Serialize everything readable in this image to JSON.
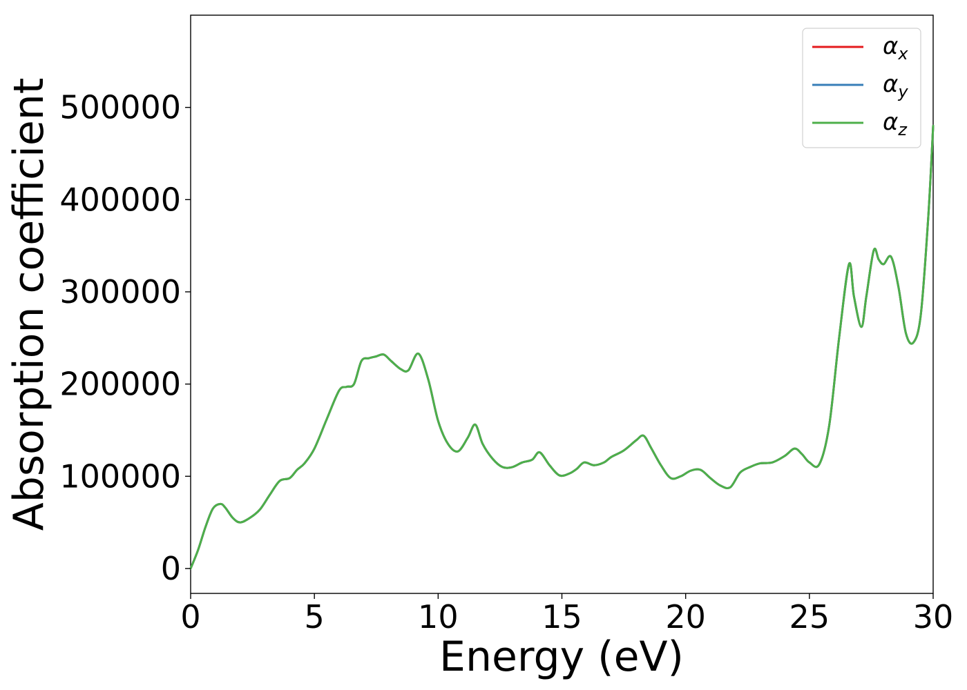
{
  "chart_data": {
    "type": "line",
    "title": "",
    "xlabel": "Energy (eV)",
    "ylabel": "Absorption coefficient",
    "xlim": [
      0,
      30
    ],
    "ylim": [
      -27000,
      600000
    ],
    "xticks": [
      0,
      5,
      10,
      15,
      20,
      25,
      30
    ],
    "yticks": [
      0,
      100000,
      200000,
      300000,
      400000,
      500000
    ],
    "grid": false,
    "legend": "top-right",
    "series": [
      {
        "name": "α",
        "sub": "x",
        "color": "#e41a1c",
        "x": [
          0,
          0.3,
          0.6,
          0.9,
          1.2,
          1.4,
          1.7,
          2.0,
          2.4,
          2.8,
          3.2,
          3.6,
          4.0,
          4.3,
          4.6,
          5.0,
          5.5,
          6.0,
          6.3,
          6.6,
          6.9,
          7.2,
          7.5,
          7.8,
          8.1,
          8.5,
          8.8,
          9.2,
          9.6,
          10.0,
          10.4,
          10.8,
          11.2,
          11.5,
          11.8,
          12.2,
          12.6,
          13.0,
          13.4,
          13.8,
          14.1,
          14.5,
          14.9,
          15.3,
          15.6,
          15.9,
          16.3,
          16.7,
          17.0,
          17.5,
          18.0,
          18.3,
          18.6,
          19.0,
          19.4,
          19.8,
          20.2,
          20.6,
          21.0,
          21.4,
          21.8,
          22.2,
          22.6,
          23.0,
          23.5,
          24.0,
          24.4,
          24.7,
          25.0,
          25.4,
          25.8,
          26.2,
          26.6,
          26.8,
          27.1,
          27.3,
          27.6,
          27.8,
          28.0,
          28.3,
          28.6,
          28.9,
          29.2,
          29.5,
          29.8,
          30.0
        ],
        "y": [
          0,
          20000,
          45000,
          65000,
          70000,
          66000,
          55000,
          50000,
          55000,
          64000,
          80000,
          95000,
          98000,
          107000,
          114000,
          130000,
          162000,
          193000,
          197000,
          200000,
          225000,
          228000,
          230000,
          232000,
          225000,
          216000,
          215000,
          233000,
          205000,
          160000,
          135000,
          127000,
          142000,
          156000,
          135000,
          119000,
          110000,
          110000,
          115000,
          118000,
          126000,
          112000,
          101000,
          103000,
          108000,
          115000,
          112000,
          115000,
          121000,
          128000,
          139000,
          144000,
          131000,
          112000,
          98000,
          100000,
          106000,
          107000,
          98000,
          90000,
          88000,
          104000,
          110000,
          114000,
          115000,
          122000,
          130000,
          124000,
          115000,
          113000,
          155000,
          250000,
          330000,
          295000,
          262000,
          295000,
          345000,
          335000,
          330000,
          338000,
          305000,
          255000,
          245000,
          275000,
          380000,
          480000
        ]
      },
      {
        "name": "α",
        "sub": "y",
        "color": "#377eb8",
        "x": [
          0,
          0.3,
          0.6,
          0.9,
          1.2,
          1.4,
          1.7,
          2.0,
          2.4,
          2.8,
          3.2,
          3.6,
          4.0,
          4.3,
          4.6,
          5.0,
          5.5,
          6.0,
          6.3,
          6.6,
          6.9,
          7.2,
          7.5,
          7.8,
          8.1,
          8.5,
          8.8,
          9.2,
          9.6,
          10.0,
          10.4,
          10.8,
          11.2,
          11.5,
          11.8,
          12.2,
          12.6,
          13.0,
          13.4,
          13.8,
          14.1,
          14.5,
          14.9,
          15.3,
          15.6,
          15.9,
          16.3,
          16.7,
          17.0,
          17.5,
          18.0,
          18.3,
          18.6,
          19.0,
          19.4,
          19.8,
          20.2,
          20.6,
          21.0,
          21.4,
          21.8,
          22.2,
          22.6,
          23.0,
          23.5,
          24.0,
          24.4,
          24.7,
          25.0,
          25.4,
          25.8,
          26.2,
          26.6,
          26.8,
          27.1,
          27.3,
          27.6,
          27.8,
          28.0,
          28.3,
          28.6,
          28.9,
          29.2,
          29.5,
          29.8,
          30.0
        ],
        "y": [
          0,
          20000,
          45000,
          65000,
          70000,
          66000,
          55000,
          50000,
          55000,
          64000,
          80000,
          95000,
          98000,
          107000,
          114000,
          130000,
          162000,
          193000,
          197000,
          200000,
          225000,
          228000,
          230000,
          232000,
          225000,
          216000,
          215000,
          233000,
          205000,
          160000,
          135000,
          127000,
          142000,
          156000,
          135000,
          119000,
          110000,
          110000,
          115000,
          118000,
          126000,
          112000,
          101000,
          103000,
          108000,
          115000,
          112000,
          115000,
          121000,
          128000,
          139000,
          144000,
          131000,
          112000,
          98000,
          100000,
          106000,
          107000,
          98000,
          90000,
          88000,
          104000,
          110000,
          114000,
          115000,
          122000,
          130000,
          124000,
          115000,
          113000,
          155000,
          250000,
          330000,
          295000,
          262000,
          295000,
          345000,
          335000,
          330000,
          338000,
          305000,
          255000,
          245000,
          275000,
          380000,
          480000
        ]
      },
      {
        "name": "α",
        "sub": "z",
        "color": "#4daf4a",
        "x": [
          0,
          0.3,
          0.6,
          0.9,
          1.2,
          1.4,
          1.7,
          2.0,
          2.4,
          2.8,
          3.2,
          3.6,
          4.0,
          4.3,
          4.6,
          5.0,
          5.5,
          6.0,
          6.3,
          6.6,
          6.9,
          7.2,
          7.5,
          7.8,
          8.1,
          8.5,
          8.8,
          9.2,
          9.6,
          10.0,
          10.4,
          10.8,
          11.2,
          11.5,
          11.8,
          12.2,
          12.6,
          13.0,
          13.4,
          13.8,
          14.1,
          14.5,
          14.9,
          15.3,
          15.6,
          15.9,
          16.3,
          16.7,
          17.0,
          17.5,
          18.0,
          18.3,
          18.6,
          19.0,
          19.4,
          19.8,
          20.2,
          20.6,
          21.0,
          21.4,
          21.8,
          22.2,
          22.6,
          23.0,
          23.5,
          24.0,
          24.4,
          24.7,
          25.0,
          25.4,
          25.8,
          26.2,
          26.6,
          26.8,
          27.1,
          27.3,
          27.6,
          27.8,
          28.0,
          28.3,
          28.6,
          28.9,
          29.2,
          29.5,
          29.8,
          30.0
        ],
        "y": [
          0,
          20000,
          45000,
          65000,
          70000,
          66000,
          55000,
          50000,
          55000,
          64000,
          80000,
          95000,
          98000,
          107000,
          114000,
          130000,
          162000,
          193000,
          197000,
          200000,
          225000,
          228000,
          230000,
          232000,
          225000,
          216000,
          215000,
          233000,
          205000,
          160000,
          135000,
          127000,
          142000,
          156000,
          135000,
          119000,
          110000,
          110000,
          115000,
          118000,
          126000,
          112000,
          101000,
          103000,
          108000,
          115000,
          112000,
          115000,
          121000,
          128000,
          139000,
          144000,
          131000,
          112000,
          98000,
          100000,
          106000,
          107000,
          98000,
          90000,
          88000,
          104000,
          110000,
          114000,
          115000,
          122000,
          130000,
          124000,
          115000,
          113000,
          155000,
          250000,
          330000,
          295000,
          262000,
          295000,
          345000,
          335000,
          330000,
          338000,
          305000,
          255000,
          245000,
          275000,
          380000,
          480000
        ]
      }
    ]
  }
}
